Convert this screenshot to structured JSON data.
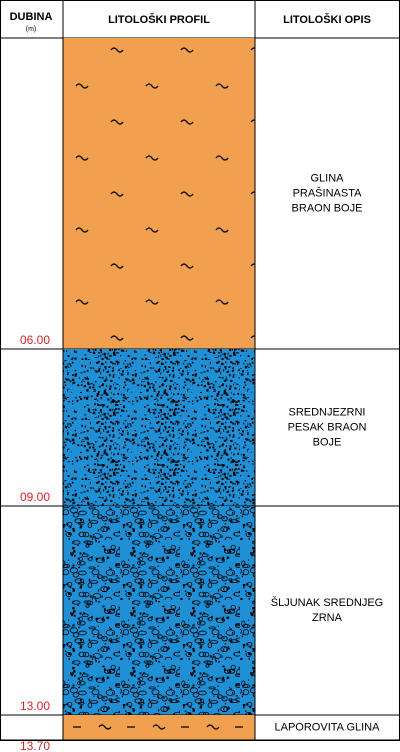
{
  "header": {
    "depth": "DUBINA",
    "unit": "(m)",
    "profile": "LITOLOŠKI PROFIL",
    "description": "LITOLOŠKI OPIS"
  },
  "layers": [
    {
      "depth": "06.00",
      "description": [
        "GLINA",
        "PRAŠINASTA",
        "BRAON BOJE"
      ]
    },
    {
      "depth": "09.00",
      "description": [
        "SREDNJEZRNI",
        "PESAK BRAON",
        "BOJE"
      ]
    },
    {
      "depth": "13.00",
      "description": [
        "ŠLJUNAK SREDNJEG",
        "ZRNA"
      ]
    },
    {
      "depth": "13.70",
      "description": [
        "LAPOROVITA GLINA"
      ]
    }
  ]
}
